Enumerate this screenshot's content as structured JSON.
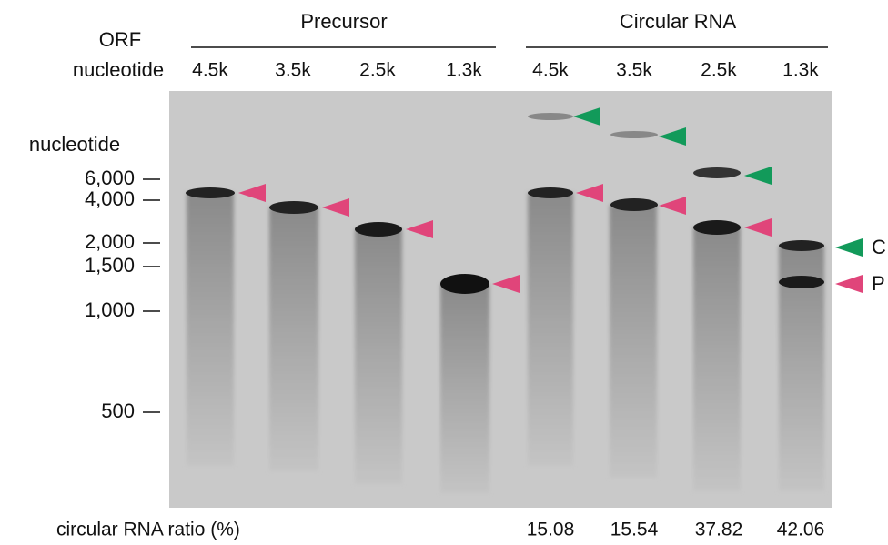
{
  "header": {
    "orf_label": "ORF",
    "orf_sub_label": "nucleotide",
    "groups": [
      "Precursor",
      "Circular RNA"
    ],
    "lanes": [
      "4.5k",
      "3.5k",
      "2.5k",
      "1.3k",
      "4.5k",
      "3.5k",
      "2.5k",
      "1.3k"
    ]
  },
  "marker": {
    "title": "nucleotide",
    "labels": [
      "6,000",
      "4,000",
      "2,000",
      "1,500",
      "1,000",
      "500"
    ]
  },
  "band_labels": [
    "C",
    "P"
  ],
  "footer": {
    "label": "circular RNA ratio (%)",
    "ratios": [
      "15.08",
      "15.54",
      "37.82",
      "42.06"
    ]
  }
}
